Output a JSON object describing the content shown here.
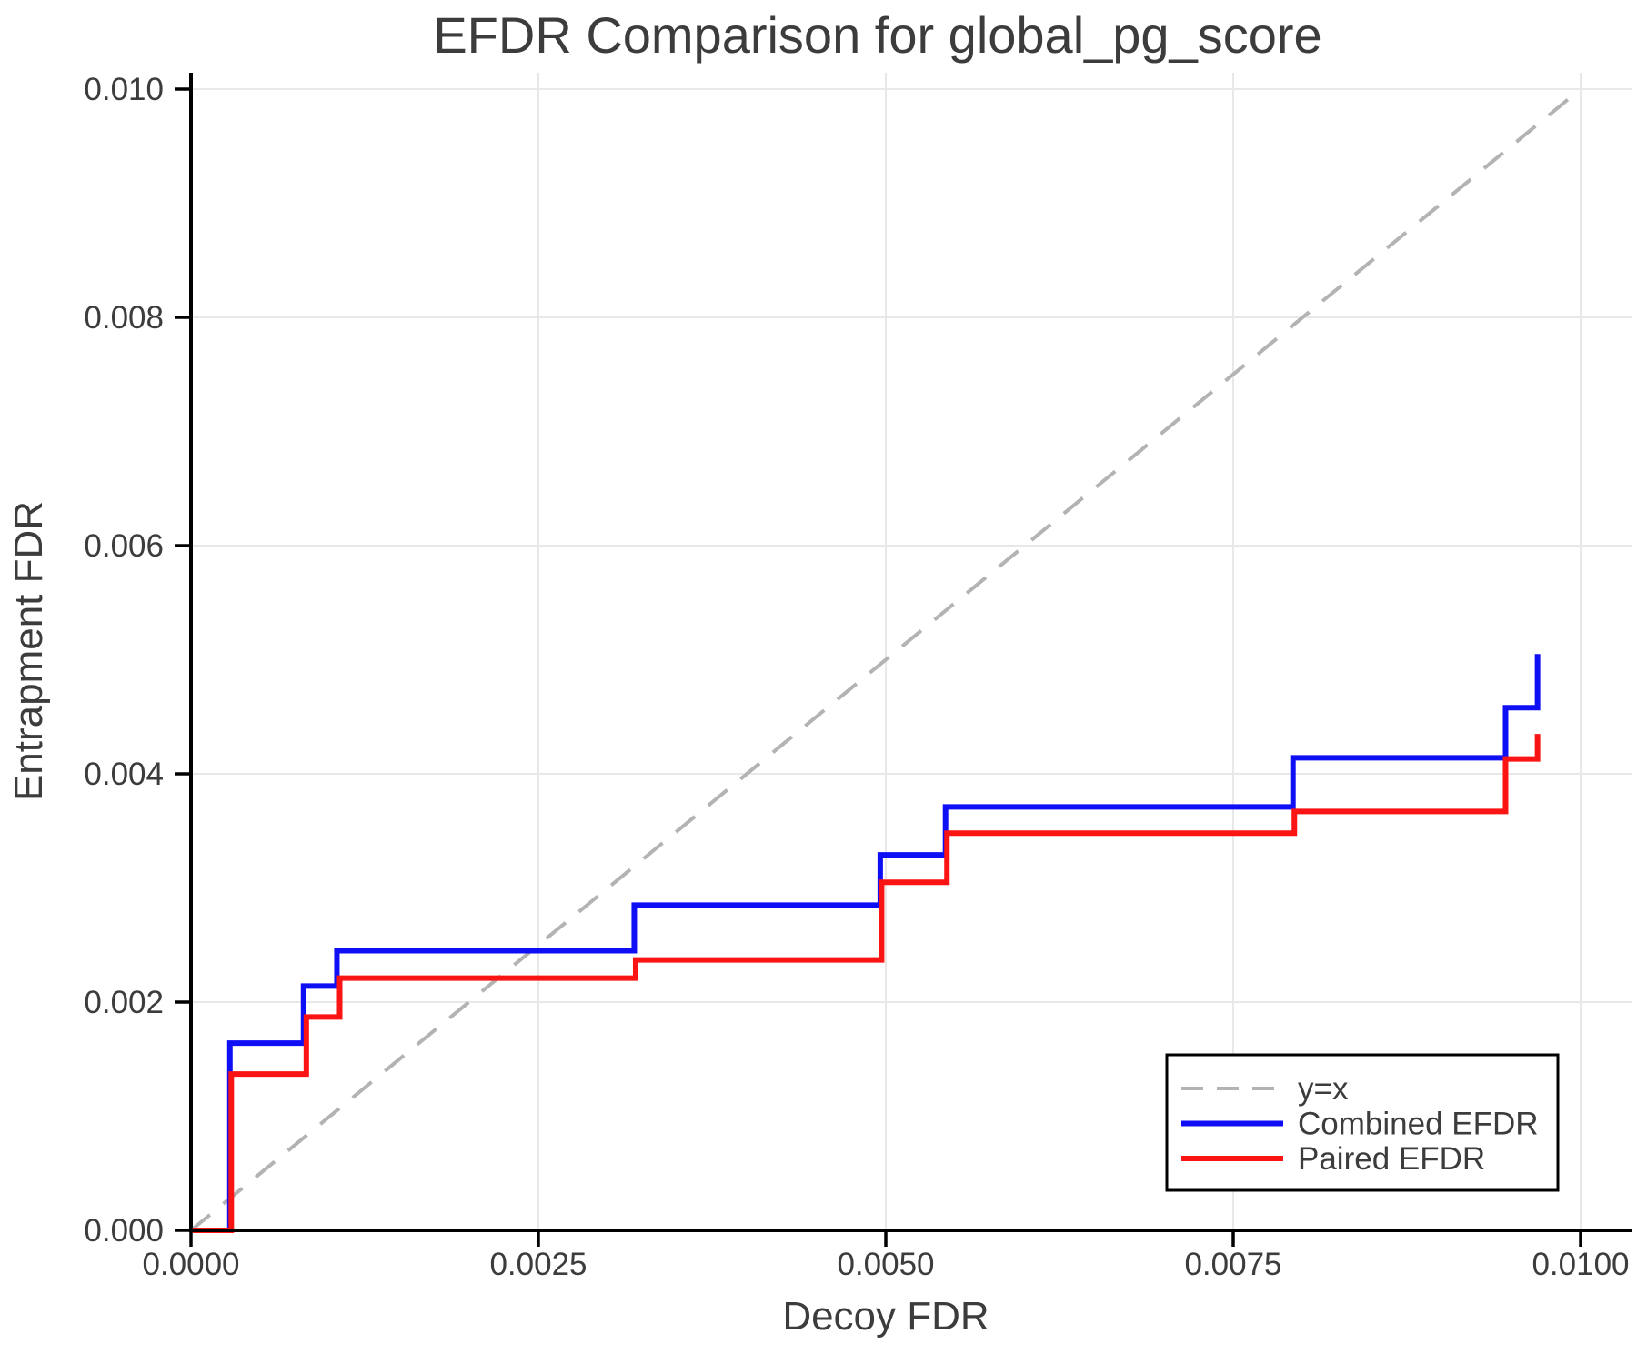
{
  "chart_data": {
    "type": "line",
    "title": "EFDR Comparison for global_pg_score",
    "xlabel": "Decoy FDR",
    "ylabel": "Entrapment FDR",
    "xlim": [
      0.0,
      0.01
    ],
    "ylim": [
      0.0,
      0.01
    ],
    "x_ticks": [
      0.0,
      0.0025,
      0.005,
      0.0075,
      0.01
    ],
    "x_tick_labels": [
      "0.0000",
      "0.0025",
      "0.0050",
      "0.0075",
      "0.0100"
    ],
    "y_ticks": [
      0.0,
      0.002,
      0.004,
      0.006,
      0.008,
      0.01
    ],
    "y_tick_labels": [
      "0.000",
      "0.002",
      "0.004",
      "0.006",
      "0.008",
      "0.010"
    ],
    "grid": true,
    "grid_color": "#e8e8e8",
    "axis_color": "#000000",
    "text_color": "#3c3c3c",
    "background_color": "#ffffff",
    "legend_position": "lower right",
    "series": [
      {
        "name": "y=x",
        "type": "reference-line",
        "style": "dashed",
        "color": "#b3b3b3",
        "x": [
          0.0,
          0.01
        ],
        "y": [
          0.0,
          0.01
        ]
      },
      {
        "name": "Combined EFDR",
        "type": "step-post",
        "style": "solid",
        "color": "#0f0ff5",
        "x": [
          0.0,
          0.00028,
          0.00081,
          0.00105,
          0.00319,
          0.00496,
          0.00543,
          0.00793,
          0.00946,
          0.00969
        ],
        "y": [
          0.0,
          0.00164,
          0.00214,
          0.00245,
          0.00285,
          0.00329,
          0.00371,
          0.00414,
          0.00458,
          0.00505
        ]
      },
      {
        "name": "Paired EFDR",
        "type": "step-post",
        "style": "solid",
        "color": "#fa1414",
        "x": [
          0.0,
          0.00029,
          0.00083,
          0.00107,
          0.0032,
          0.00497,
          0.00544,
          0.00794,
          0.00946,
          0.00969
        ],
        "y": [
          0.0,
          0.00137,
          0.00187,
          0.00221,
          0.00237,
          0.00305,
          0.00348,
          0.00367,
          0.00413,
          0.00435
        ]
      }
    ]
  }
}
